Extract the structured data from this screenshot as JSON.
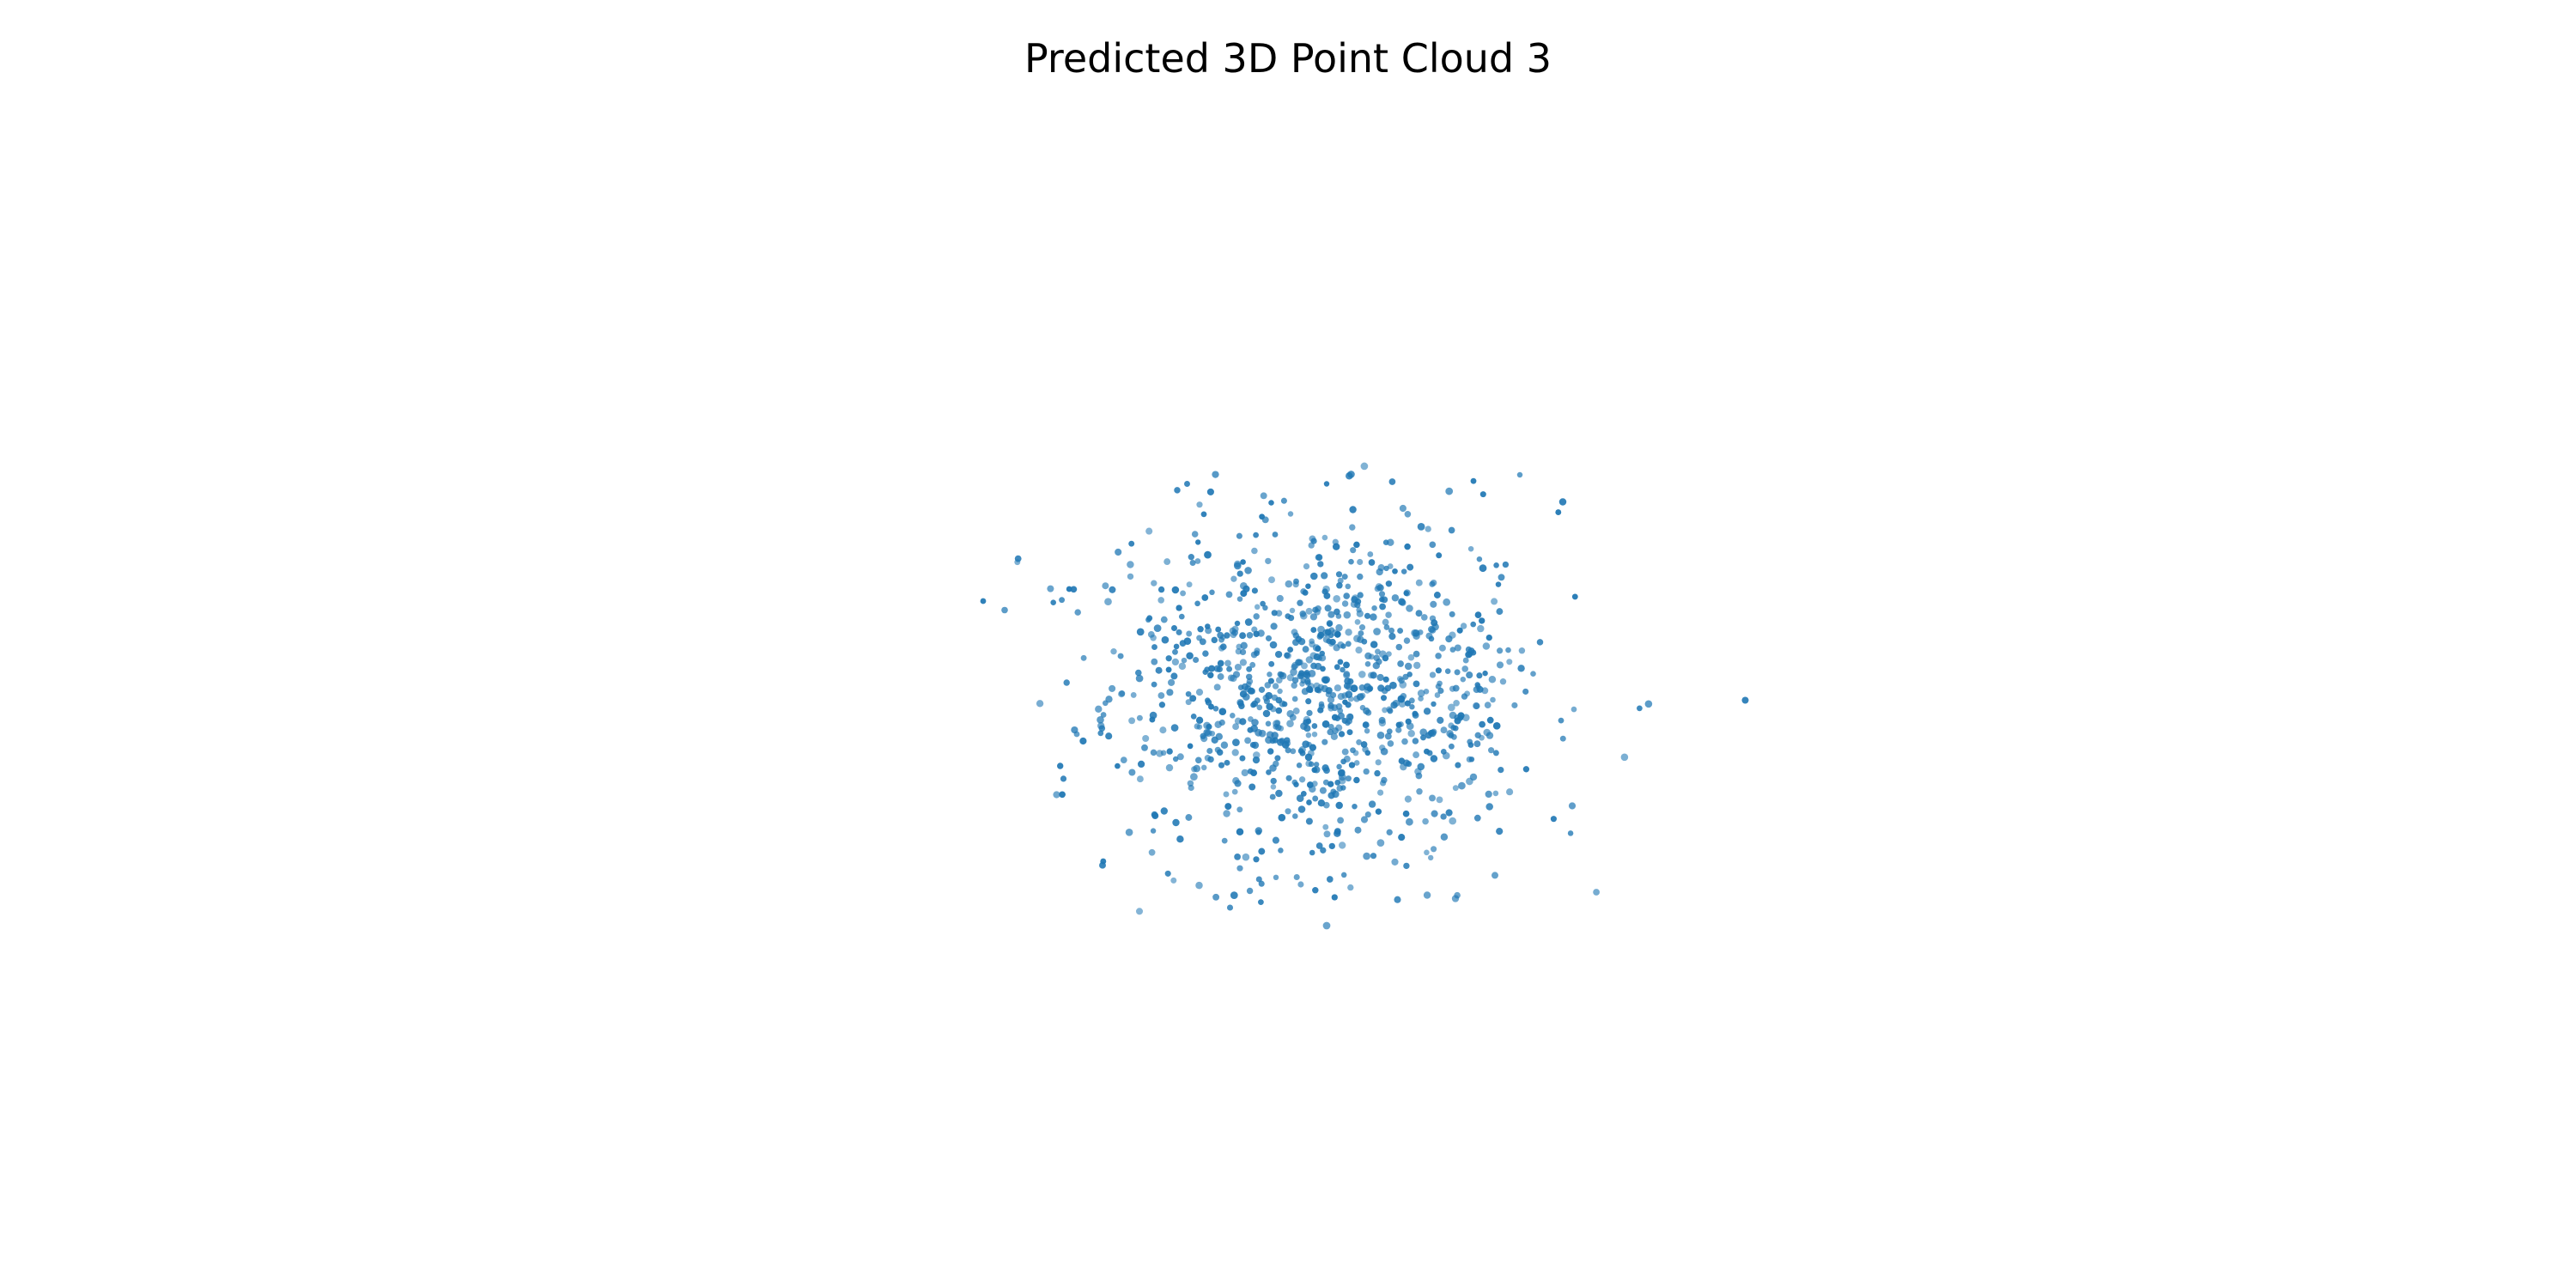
{
  "chart_data": {
    "type": "scatter",
    "title": "Predicted 3D Point Cloud 3",
    "axes_visible": false,
    "grid": false,
    "point_color": "#1f77b4",
    "distribution": "approximately isotropic Gaussian cloud centered near origin",
    "point_count_approx": 1000,
    "x_center": 0.0,
    "y_center": 0.0,
    "std": 1.0,
    "outliers": [
      {
        "x": -3.2,
        "y": 1.0
      },
      {
        "x": -3.0,
        "y": 0.9
      },
      {
        "x": 3.9,
        "y": -0.1
      },
      {
        "x": 0.0,
        "y": -2.6
      },
      {
        "x": -0.9,
        "y": -2.4
      },
      {
        "x": 1.2,
        "y": -2.3
      },
      {
        "x": 1.8,
        "y": 2.4
      },
      {
        "x": -1.3,
        "y": 2.3
      },
      {
        "x": 0.0,
        "y": 2.3
      },
      {
        "x": 2.2,
        "y": 2.1
      }
    ]
  }
}
